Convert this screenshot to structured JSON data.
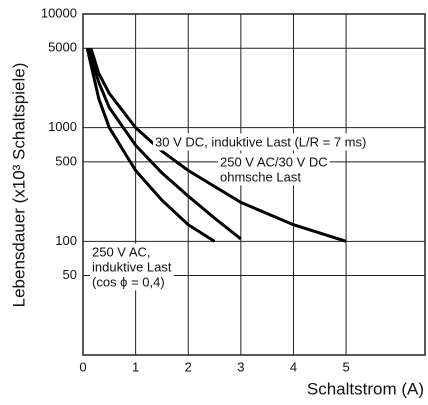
{
  "chart_data": {
    "type": "line",
    "y_label": "Lebensdauer (x10³ Schaltspiele)",
    "x_label": "Schaltstrom (A)",
    "log_y": true,
    "grid": true,
    "xlim": [
      0,
      6.5
    ],
    "ylim": [
      10,
      10000
    ],
    "xticks": [
      0,
      1,
      2,
      3,
      4,
      5
    ],
    "yticks": [
      50,
      100,
      500,
      1000,
      5000,
      10000
    ],
    "series": [
      {
        "color": "#000000",
        "x": [
          0.15,
          0.3,
          0.5,
          1,
          1.5,
          2,
          3,
          4,
          5
        ],
        "values": [
          5000,
          3000,
          2000,
          1000,
          620,
          420,
          220,
          140,
          100
        ]
      },
      {
        "color": "#000000",
        "x": [
          0.1,
          0.3,
          0.5,
          1,
          1.5,
          2,
          2.5,
          3
        ],
        "values": [
          5000,
          2500,
          1500,
          700,
          400,
          250,
          160,
          105
        ]
      },
      {
        "color": "#000000",
        "x": [
          0.08,
          0.3,
          0.5,
          1,
          1.5,
          2,
          2.5
        ],
        "values": [
          5000,
          1800,
          1000,
          420,
          230,
          140,
          100
        ]
      }
    ],
    "annotations": [
      {
        "lines": [
          "30 V DC, induktive Last (L/R = 7 ms)"
        ]
      },
      {
        "lines": [
          "250 V AC/30 V DC",
          "ohmsche Last"
        ]
      },
      {
        "lines": [
          "250 V AC,",
          "induktive Last",
          "(cos ϕ = 0,4)"
        ]
      }
    ]
  }
}
